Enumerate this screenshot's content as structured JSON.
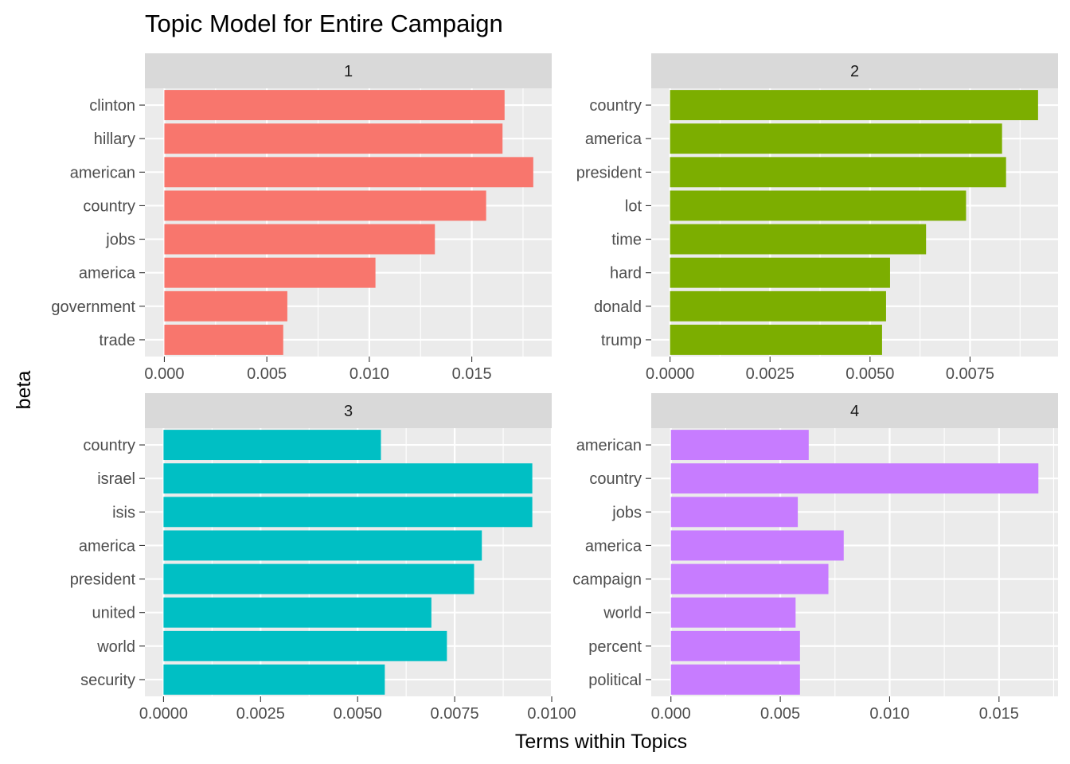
{
  "colors": {
    "panel_background": "#EBEBEB",
    "strip_background": "#D9D9D9",
    "grid_line": "#FFFFFF",
    "tick_mark": "#333333",
    "tick_text": "#4D4D4D"
  },
  "chart_data": {
    "type": "bar",
    "orientation": "horizontal",
    "facet_layout": "2x2",
    "scales": "free",
    "legend": "none",
    "grid": true,
    "title": "Topic Model for Entire Campaign",
    "xlabel": "Terms within Topics",
    "ylabel": "beta",
    "panels": [
      {
        "label": "1",
        "color": "#F8766D",
        "xlim": [
          -0.00095,
          0.0189
        ],
        "xticks": [
          0.0,
          0.005,
          0.01,
          0.015
        ],
        "xtick_labels": [
          "0.000",
          "0.005",
          "0.010",
          "0.015"
        ],
        "categories": [
          "clinton",
          "hillary",
          "american",
          "country",
          "jobs",
          "america",
          "government",
          "trade"
        ],
        "values": [
          0.0166,
          0.0165,
          0.018,
          0.0157,
          0.0132,
          0.0103,
          0.006,
          0.0058
        ]
      },
      {
        "label": "2",
        "color": "#7CAE00",
        "xlim": [
          -0.00047,
          0.0097
        ],
        "xticks": [
          0.0,
          0.0025,
          0.005,
          0.0075
        ],
        "xtick_labels": [
          "0.0000",
          "0.0025",
          "0.0050",
          "0.0075"
        ],
        "categories": [
          "country",
          "america",
          "president",
          "lot",
          "time",
          "hard",
          "donald",
          "trump"
        ],
        "values": [
          0.0092,
          0.0083,
          0.0084,
          0.0074,
          0.0064,
          0.0055,
          0.0054,
          0.0053
        ]
      },
      {
        "label": "3",
        "color": "#00BFC4",
        "xlim": [
          -0.00048,
          0.01
        ],
        "xticks": [
          0.0,
          0.0025,
          0.005,
          0.0075,
          0.01
        ],
        "xtick_labels": [
          "0.0000",
          "0.0025",
          "0.0050",
          "0.0075",
          "0.0100"
        ],
        "categories": [
          "country",
          "israel",
          "isis",
          "america",
          "president",
          "united",
          "world",
          "security"
        ],
        "values": [
          0.0056,
          0.0095,
          0.0095,
          0.0082,
          0.008,
          0.0069,
          0.0073,
          0.0057
        ]
      },
      {
        "label": "4",
        "color": "#C77CFF",
        "xlim": [
          -0.0009,
          0.0177
        ],
        "xticks": [
          0.0,
          0.005,
          0.01,
          0.015
        ],
        "xtick_labels": [
          "0.000",
          "0.005",
          "0.010",
          "0.015"
        ],
        "categories": [
          "american",
          "country",
          "jobs",
          "america",
          "campaign",
          "world",
          "percent",
          "political"
        ],
        "values": [
          0.0063,
          0.0168,
          0.0058,
          0.0079,
          0.0072,
          0.0057,
          0.0059,
          0.0059
        ]
      }
    ]
  }
}
